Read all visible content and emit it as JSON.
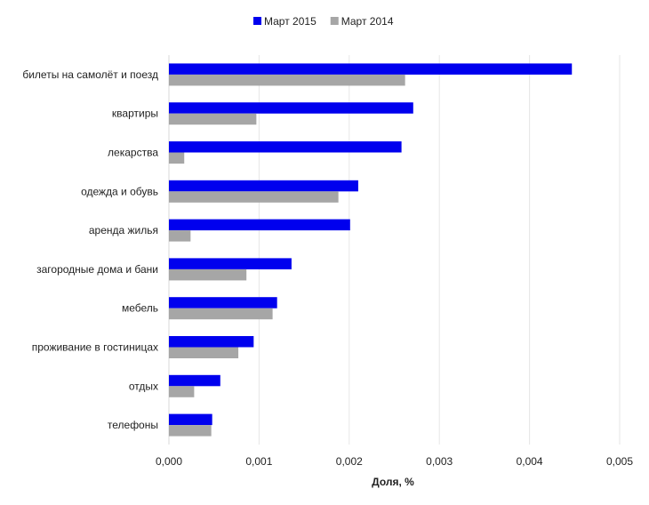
{
  "chart_data": {
    "type": "bar",
    "orientation": "horizontal",
    "categories": [
      "билеты на самолёт и поезд",
      "квартиры",
      "лекарства",
      "одежда и обувь",
      "аренда жилья",
      "загородные дома и бани",
      "мебель",
      "проживание в гостиницах",
      "отдых",
      "телефоны"
    ],
    "series": [
      {
        "name": "Март 2015",
        "color": "#0000EE",
        "values": [
          0.00447,
          0.00271,
          0.00258,
          0.0021,
          0.00201,
          0.00136,
          0.0012,
          0.00094,
          0.00057,
          0.00048
        ]
      },
      {
        "name": "Март 2014",
        "color": "#A6A6A6",
        "values": [
          0.00262,
          0.00097,
          0.00017,
          0.00188,
          0.00024,
          0.00086,
          0.00115,
          0.00077,
          0.00028,
          0.00047
        ]
      }
    ],
    "xlabel": "Доля, %",
    "ylabel": "",
    "xlim": [
      0,
      0.005
    ],
    "xticks": [
      0,
      0.001,
      0.002,
      0.003,
      0.004,
      0.005
    ],
    "xtick_labels": [
      "0,000",
      "0,001",
      "0,002",
      "0,003",
      "0,004",
      "0,005"
    ],
    "grid": "vertical",
    "legend_position": "top-center"
  }
}
